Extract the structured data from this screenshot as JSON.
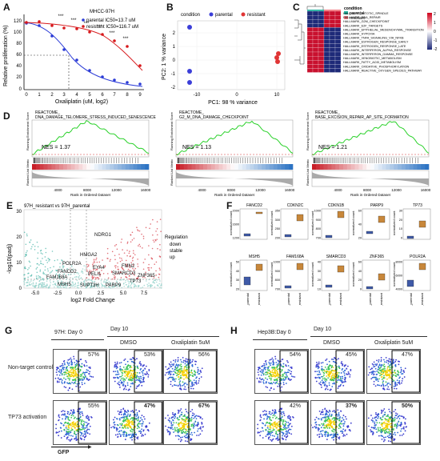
{
  "panels": {
    "A": "A",
    "B": "B",
    "C": "C",
    "D": "D",
    "E": "E",
    "F": "F",
    "G": "G",
    "H": "H"
  },
  "A": {
    "title": "MHCC-97H",
    "legend_parental": "parental IC50=13.7 uM",
    "legend_resistant": "resistant IC50=116.7 uM",
    "xlabel": "Oxaliplatin (uM, log2)",
    "ylabel": "Relative proliferation (%)",
    "xticks": [
      "0",
      "1",
      "2",
      "3",
      "4",
      "5",
      "6",
      "7",
      "8",
      "9"
    ],
    "yticks": [
      "0",
      "20",
      "40",
      "60",
      "80",
      "100",
      "120"
    ],
    "sig": "***",
    "colors": {
      "parental": "#2b3bd6",
      "resistant": "#d7191c"
    }
  },
  "B": {
    "legend_title": "condition",
    "legend_parental": "parental",
    "legend_resistant": "resistant",
    "xlabel": "PC1: 98 % variance",
    "ylabel": "PC2: 1 % variance",
    "xticks": [
      "-10",
      "0",
      "10"
    ],
    "yticks": [
      "-2",
      "-1",
      "0",
      "1",
      "2"
    ]
  },
  "C": {
    "legend_title": "condition",
    "legend_parental": "parental",
    "legend_resistant": "resistant",
    "scale": [
      "2",
      "1",
      "0",
      "-1",
      "-2"
    ],
    "pathways": [
      "HALLMARK_MITOTIC_SPINDLE",
      "HALLMARK_DNA_REPAIR",
      "HALLMARK_G2M_CHECKPOINT",
      "HALLMARK_E2F_TARGETS",
      "HALLMARK_EPITHELIAL_MESENCHYMAL_TRANSITION",
      "HALLMARK_HYPOXIA",
      "HALLMARK_TNFA_SIGNALING_VIA_NFKB",
      "HALLMARK_ESTROGEN_RESPONSE_EARLY",
      "HALLMARK_ESTROGEN_RESPONSE_LATE",
      "HALLMARK_INTERFERON_ALPHA_RESPONSE",
      "HALLMARK_INTERFERON_GAMMA_RESPONSE",
      "HALLMARK_XENOBIOTIC_METABOLISM",
      "HALLMARK_FATTY_ACID_METABOLISM",
      "HALLMARK_OXIDATIVE_PHOSPHORYLATION",
      "HALLMARK_REACTIVE_OXYGEN_SPECIES_PATHWAY"
    ]
  },
  "D": {
    "plots": [
      {
        "title": "REACTOME_\nDNA_DAMAGE_TELOMERE_STRESS_INDUCED_SENESCENCE",
        "nes": "NES = 1.37"
      },
      {
        "title": "REACTOME_\nG2_M_DNA_DAMAGE_CHECKPOINT",
        "nes": "NES = 1.13"
      },
      {
        "title": "REACTOME_\nBASE_EXCISION_REPAIR_AP_SITE_FORMATION",
        "nes": "NES = 1.21"
      }
    ],
    "ylabel_top": "Running Enrichment Score",
    "ylabel_bottom": "Ranked List Metric",
    "xlabel": "Rank in Ordered Dataset",
    "xticks": [
      "4000",
      "8000",
      "12000",
      "16000"
    ]
  },
  "E": {
    "title": "97H_resistant vs 97H_parental",
    "xlabel": "log2 Fold Change",
    "ylabel": "-log10(padj)",
    "xticks": [
      "-5.0",
      "-2.5",
      "0.0",
      "2.5",
      "5.0",
      "7.5"
    ],
    "yticks": [
      "0",
      "10",
      "20",
      "30"
    ],
    "legend_title": "Regulation",
    "legend_items": [
      "down",
      "stable",
      "up"
    ],
    "genes": [
      "NDRG1",
      "HMGA2",
      "POLR2A",
      "EYA4",
      "FMN2",
      "FANCD2",
      "PELI1",
      "SMARCD3",
      "ZNF365",
      "FAM168A",
      "TP73",
      "MSH5",
      "SUPT3H",
      "PARP9"
    ]
  },
  "F": {
    "ylabel": "normalized count",
    "xcats": [
      "97H_parental",
      "97H_resistant"
    ],
    "genes": [
      {
        "name": "FANCD2",
        "yticks": [
          "1200",
          "1600",
          "2000"
        ]
      },
      {
        "name": "CDKN2C",
        "yticks": [
          "200",
          "250",
          "300",
          "350"
        ]
      },
      {
        "name": "CDKN1B",
        "yticks": [
          "700",
          "800",
          "900",
          "1000"
        ]
      },
      {
        "name": "PARP9",
        "yticks": [
          "20",
          "40",
          "60"
        ]
      },
      {
        "name": "TP73",
        "yticks": [
          "0",
          "10",
          "20",
          "30"
        ]
      },
      {
        "name": "MSH5",
        "yticks": [
          "20",
          "30",
          "40",
          "50"
        ]
      },
      {
        "name": "FAM168A",
        "yticks": [
          "700",
          "800",
          "900",
          "1000"
        ]
      },
      {
        "name": "SMARCD3",
        "yticks": [
          "10",
          "20",
          "30",
          "40"
        ]
      },
      {
        "name": "ZNF365",
        "yticks": [
          "0",
          "20",
          "40",
          "60"
        ]
      },
      {
        "name": "POLR2A",
        "yticks": [
          "4000",
          "6000",
          "8000"
        ]
      }
    ]
  },
  "G": {
    "day0": "97H: Day 0",
    "day10": "Day 10",
    "dmso": "DMSO",
    "oxali": "Oxaliplatin 5uM",
    "row1": "Non-target control",
    "row2": "TP73 activation",
    "gfp": "GFP",
    "values": [
      [
        "57%",
        "53%",
        "56%"
      ],
      [
        "55%",
        "47%",
        "67%"
      ]
    ]
  },
  "H": {
    "day0": "Hep3B:Day 0",
    "day10": "Day 10",
    "dmso": "DMSO",
    "oxali": "Oxaliplatin 5uM",
    "values": [
      [
        "54%",
        "45%",
        "47%"
      ],
      [
        "42%",
        "37%",
        "50%"
      ]
    ]
  }
}
